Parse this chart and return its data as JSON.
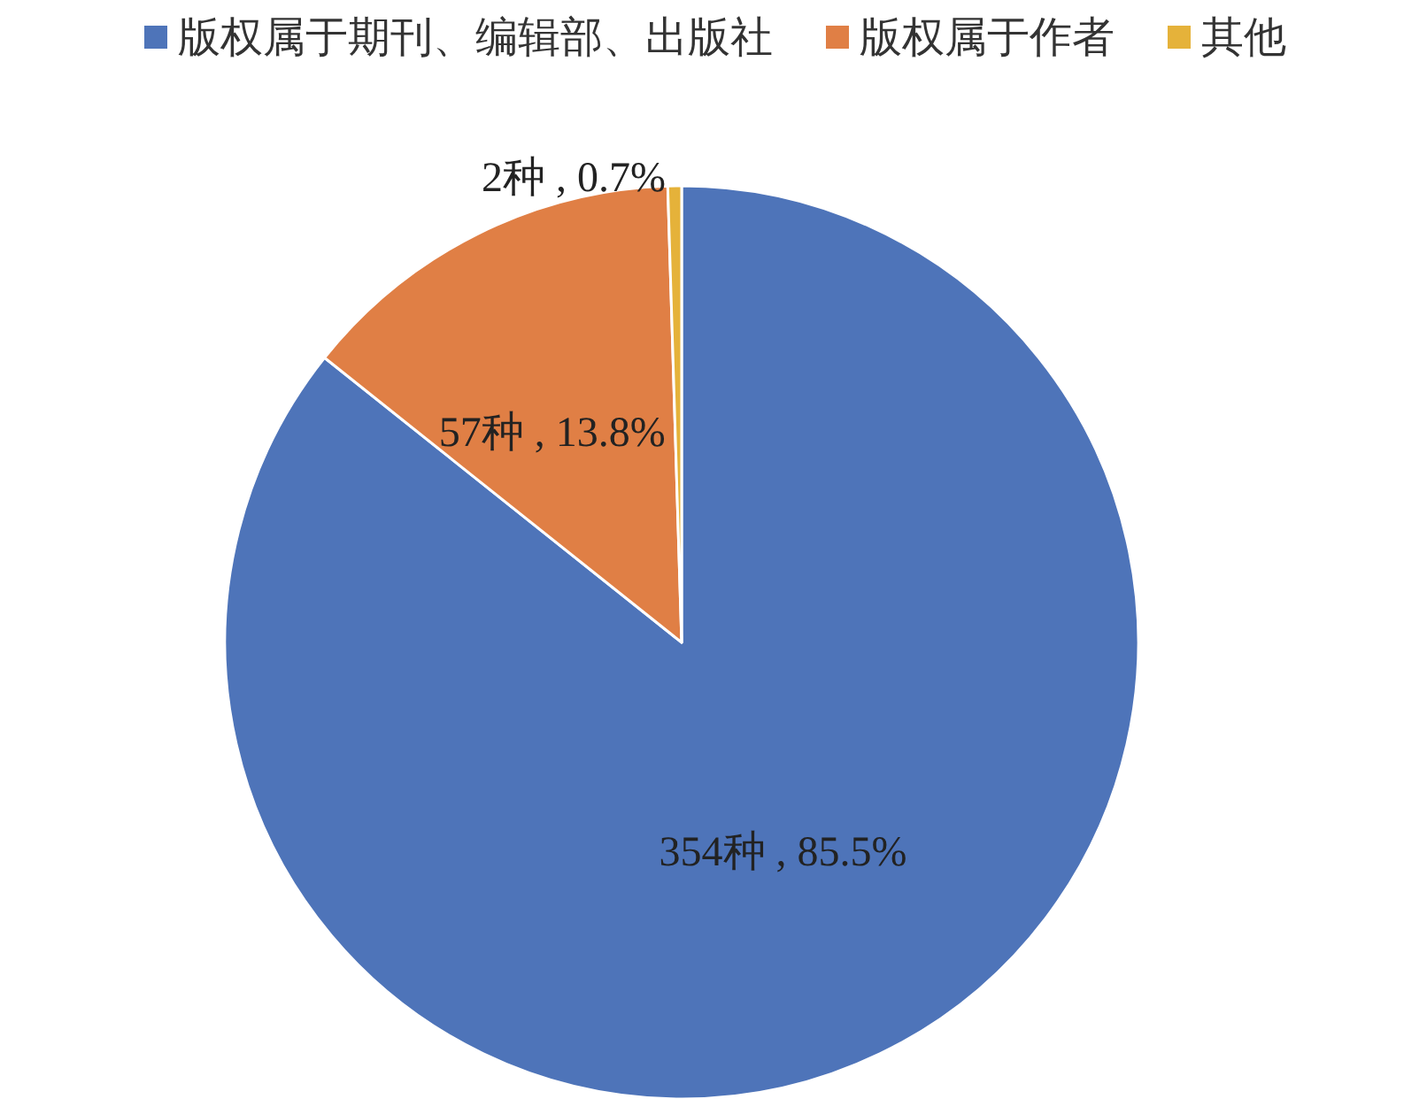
{
  "chart_data": {
    "type": "pie",
    "categories": [
      "版权属于期刊、编辑部、出版社",
      "版权属于作者",
      "其他"
    ],
    "values": [
      354,
      57,
      2
    ],
    "colors": [
      "#4e74b9",
      "#e07f45",
      "#e5b23a"
    ],
    "value_labels": [
      "354种 , 85.5%",
      "57种 , 13.8%",
      "2种 , 0.7%"
    ],
    "legend": "top"
  }
}
